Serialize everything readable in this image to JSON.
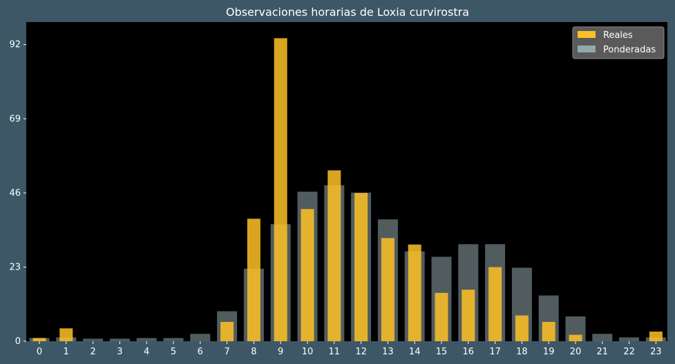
{
  "chart_data": {
    "type": "bar",
    "title": "Observaciones horarias de Loxia curvirostra",
    "xlabel": "",
    "ylabel": "",
    "categories": [
      "0",
      "1",
      "2",
      "3",
      "4",
      "5",
      "6",
      "7",
      "8",
      "9",
      "10",
      "11",
      "12",
      "13",
      "14",
      "15",
      "16",
      "17",
      "18",
      "19",
      "20",
      "21",
      "22",
      "23"
    ],
    "series": [
      {
        "name": "Reales",
        "color": "#ffc125",
        "values": [
          1,
          4,
          0,
          0,
          0,
          0,
          0,
          6,
          38,
          94,
          41,
          53,
          46,
          32,
          30,
          15,
          16,
          23,
          8,
          6,
          2,
          0,
          0,
          3
        ]
      },
      {
        "name": "Ponderadas",
        "color": "#93a8ad",
        "values": [
          1,
          1.2,
          0.8,
          0.8,
          1,
          1,
          2.3,
          9.3,
          22.5,
          36.3,
          46.4,
          48.4,
          46.1,
          37.8,
          27.9,
          26.2,
          30.1,
          30.1,
          22.8,
          14.2,
          7.7,
          2.3,
          1.2,
          1.2
        ]
      }
    ],
    "yticks": [
      0,
      23,
      46,
      69,
      92
    ],
    "ylim": [
      0,
      99
    ],
    "grid": false,
    "legend": "top-right"
  }
}
